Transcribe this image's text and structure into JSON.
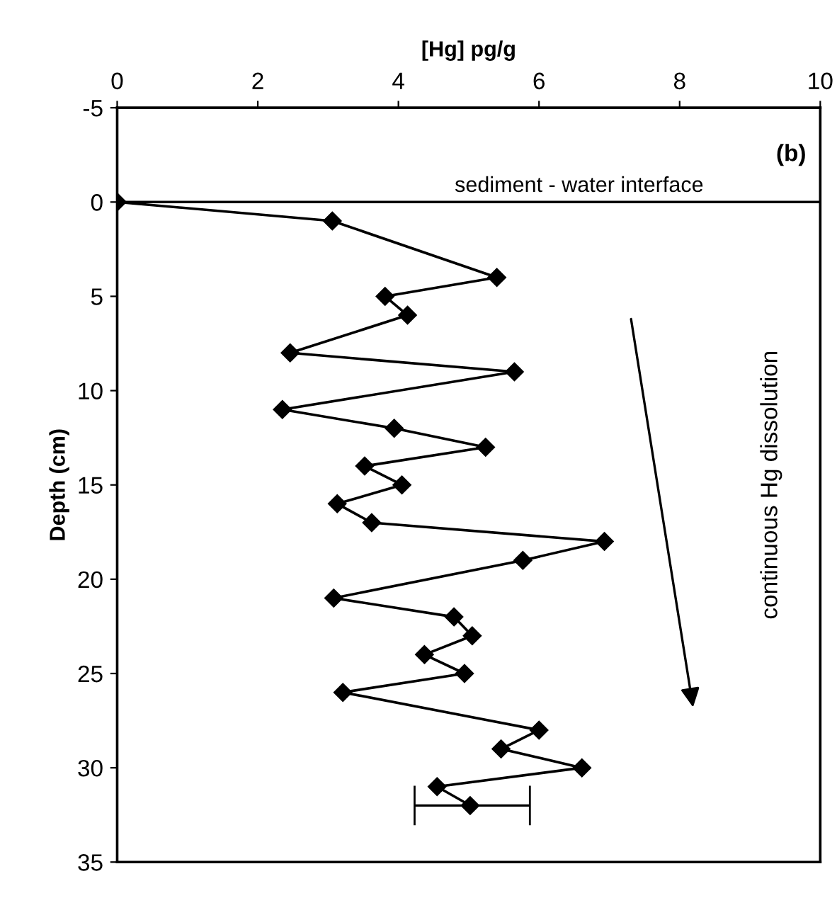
{
  "chart_data": {
    "type": "line",
    "xlabel": "[Hg] pg/g",
    "ylabel": "Depth (cm)",
    "xlim": [
      0,
      10
    ],
    "xticks": [
      0,
      2,
      4,
      6,
      8,
      10
    ],
    "ylim": [
      35,
      -5
    ],
    "yticks": [
      -5,
      0,
      5,
      10,
      15,
      20,
      25,
      30,
      35
    ],
    "grid": false,
    "legend": false,
    "marker": "diamond",
    "line_style": "solid",
    "series": [
      {
        "color": "#000000",
        "x": [
          0,
          3.06,
          5.4,
          3.81,
          4.13,
          2.46,
          5.65,
          2.35,
          3.94,
          5.24,
          3.52,
          4.05,
          3.13,
          3.62,
          6.93,
          5.77,
          3.08,
          4.79,
          5.05,
          4.37,
          4.94,
          3.21,
          6.0,
          5.46,
          6.61,
          4.55,
          5.02
        ],
        "values": [
          0,
          1,
          4,
          5,
          6,
          8,
          9,
          11,
          12,
          13,
          14,
          15,
          16,
          17,
          18,
          19,
          21,
          22,
          23,
          24,
          25,
          26,
          28,
          29,
          30,
          31,
          32
        ],
        "xerrors": [
          null,
          null,
          null,
          null,
          null,
          null,
          null,
          null,
          null,
          null,
          null,
          null,
          null,
          null,
          null,
          null,
          null,
          null,
          null,
          null,
          null,
          null,
          null,
          null,
          null,
          null,
          [
            4.23,
            5.87
          ]
        ]
      }
    ],
    "ref_lines": [
      {
        "axis": "y",
        "value": 0,
        "label": "sediment - water interface",
        "color": "#000000",
        "line_style": "solid"
      }
    ],
    "annotations": [
      "(b)",
      "continuous Hg dissolution"
    ]
  }
}
